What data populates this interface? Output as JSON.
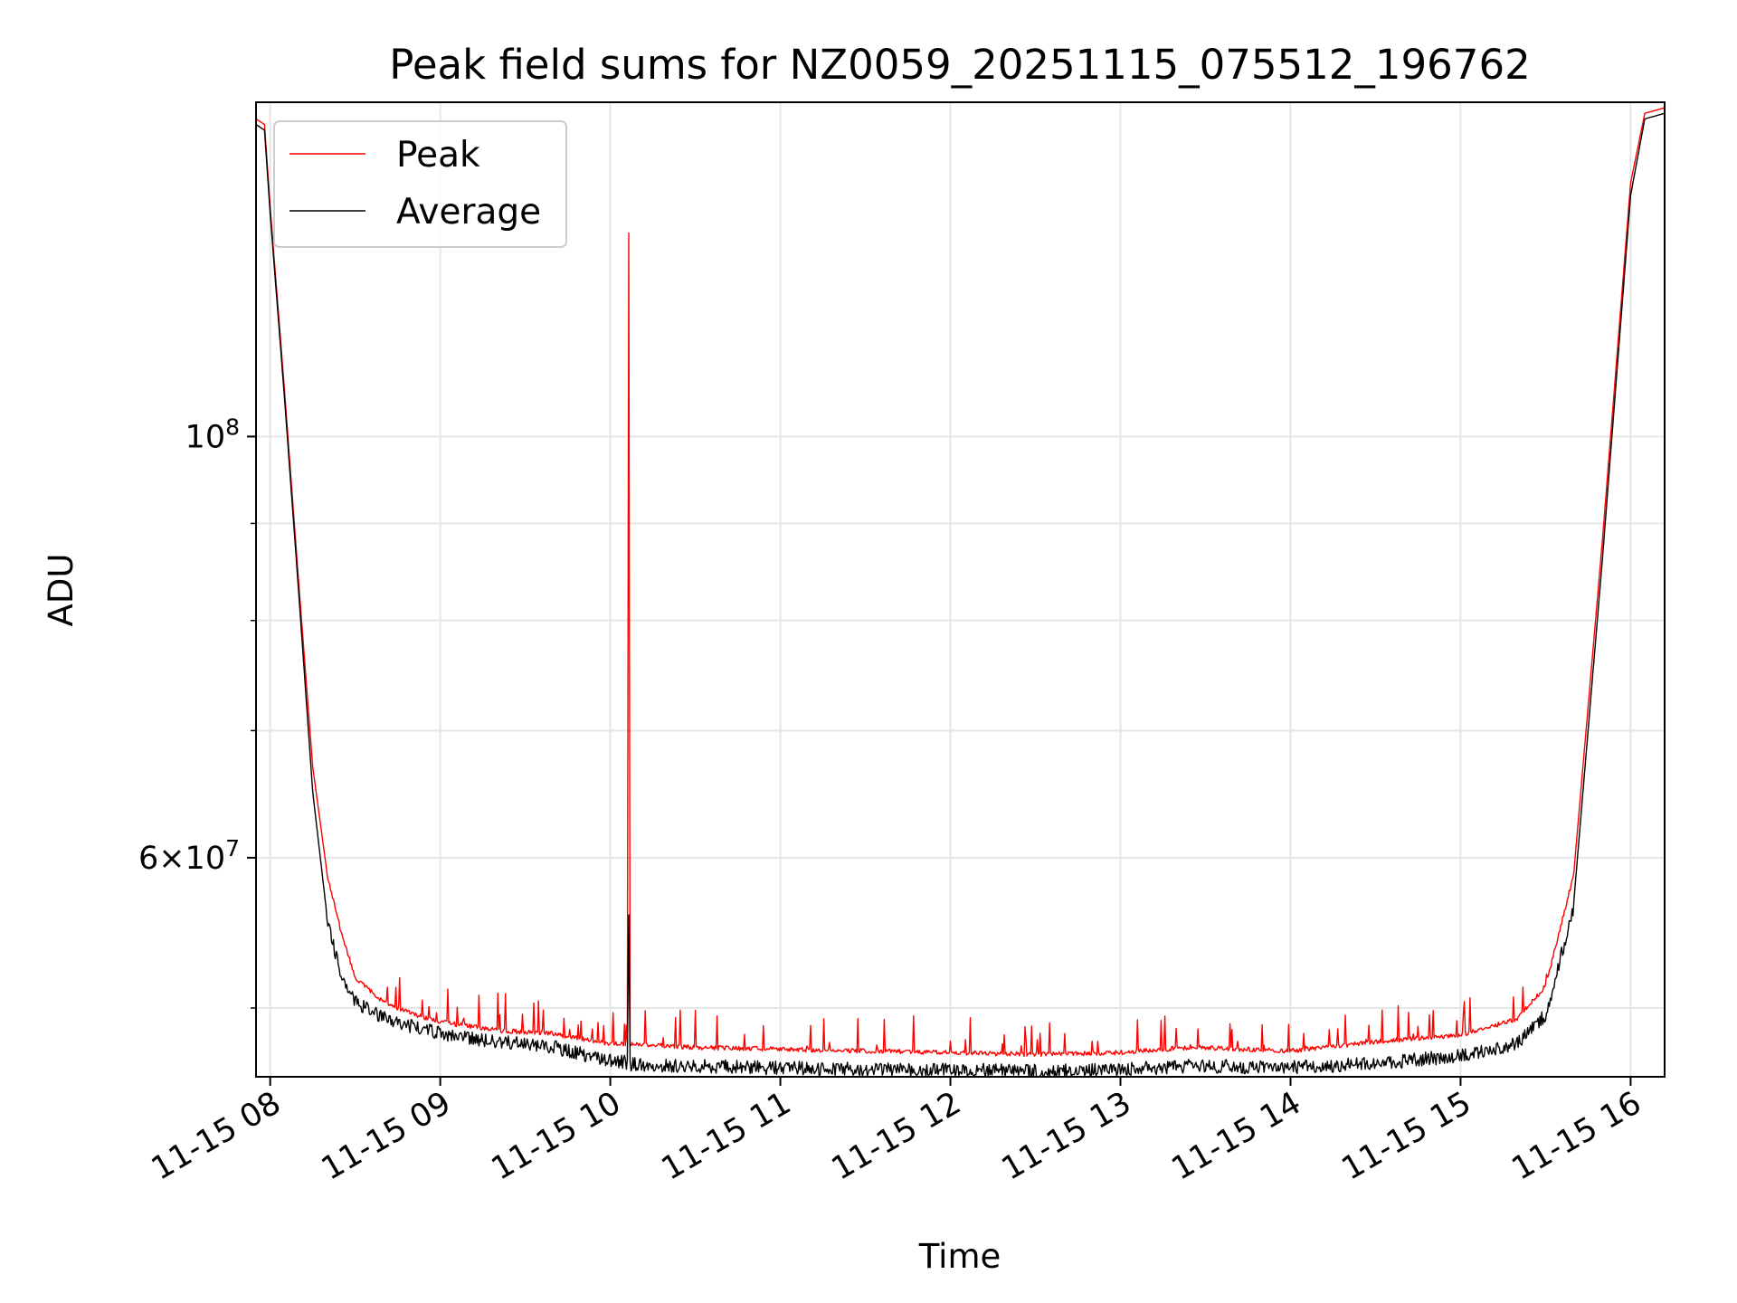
{
  "chart_data": {
    "type": "line",
    "title": "Peak field sums for NZ0059_20251115_075512_196762",
    "xlabel": "Time",
    "ylabel": "ADU",
    "xlim": [
      "2025-11-15 07:55",
      "2025-11-15 16:12"
    ],
    "ylim": [
      46000000,
      150000000
    ],
    "yscale": "log",
    "grid": true,
    "legend_position": "upper-left",
    "x_tick_labels": [
      "11-15 08",
      "11-15 09",
      "11-15 10",
      "11-15 11",
      "11-15 12",
      "11-15 13",
      "11-15 14",
      "11-15 15",
      "11-15 16"
    ],
    "y_major_tick_labels": [
      {
        "value": 100000000,
        "base": "10",
        "exp": "8",
        "mant": ""
      },
      {
        "value": 60000000,
        "base": "10",
        "exp": "7",
        "mant": "6"
      }
    ],
    "x_tick_values": [
      "2025-11-15 08:00",
      "2025-11-15 09:00",
      "2025-11-15 10:00",
      "2025-11-15 11:00",
      "2025-11-15 12:00",
      "2025-11-15 13:00",
      "2025-11-15 14:00",
      "2025-11-15 15:00",
      "2025-11-15 16:00"
    ],
    "y_minor_ticks": [
      50000000,
      70000000,
      80000000,
      90000000
    ],
    "series": [
      {
        "name": "Peak",
        "color": "#ff0000",
        "points": [
          [
            "2025-11-15 07:55",
            147000000
          ],
          [
            "2025-11-15 07:58",
            146000000
          ],
          [
            "2025-11-15 08:00",
            132000000
          ],
          [
            "2025-11-15 08:05",
            106000000
          ],
          [
            "2025-11-15 08:10",
            84000000
          ],
          [
            "2025-11-15 08:15",
            67000000
          ],
          [
            "2025-11-15 08:20",
            59000000
          ],
          [
            "2025-11-15 08:25",
            55000000
          ],
          [
            "2025-11-15 08:30",
            52000000
          ],
          [
            "2025-11-15 08:40",
            50500000
          ],
          [
            "2025-11-15 08:50",
            49800000
          ],
          [
            "2025-11-15 09:00",
            49300000
          ],
          [
            "2025-11-15 09:20",
            48800000
          ],
          [
            "2025-11-15 09:40",
            48600000
          ],
          [
            "2025-11-15 10:00",
            48000000
          ],
          [
            "2025-11-15 10:06",
            48000000
          ],
          [
            "2025-11-15 10:06:30",
            128000000
          ],
          [
            "2025-11-15 10:07",
            48000000
          ],
          [
            "2025-11-15 10:30",
            47800000
          ],
          [
            "2025-11-15 11:00",
            47700000
          ],
          [
            "2025-11-15 11:30",
            47600000
          ],
          [
            "2025-11-15 12:00",
            47500000
          ],
          [
            "2025-11-15 12:30",
            47400000
          ],
          [
            "2025-11-15 13:00",
            47500000
          ],
          [
            "2025-11-15 13:25",
            47800000
          ],
          [
            "2025-11-15 14:00",
            47600000
          ],
          [
            "2025-11-15 14:35",
            48200000
          ],
          [
            "2025-11-15 15:00",
            48500000
          ],
          [
            "2025-11-15 15:20",
            49500000
          ],
          [
            "2025-11-15 15:30",
            51500000
          ],
          [
            "2025-11-15 15:40",
            59000000
          ],
          [
            "2025-11-15 15:50",
            88000000
          ],
          [
            "2025-11-15 16:00",
            136000000
          ],
          [
            "2025-11-15 16:05",
            148000000
          ],
          [
            "2025-11-15 16:12",
            149000000
          ]
        ]
      },
      {
        "name": "Average",
        "color": "#000000",
        "points": [
          [
            "2025-11-15 07:55",
            146000000
          ],
          [
            "2025-11-15 07:58",
            145000000
          ],
          [
            "2025-11-15 08:00",
            131000000
          ],
          [
            "2025-11-15 08:05",
            105000000
          ],
          [
            "2025-11-15 08:10",
            83000000
          ],
          [
            "2025-11-15 08:15",
            65000000
          ],
          [
            "2025-11-15 08:20",
            56000000
          ],
          [
            "2025-11-15 08:25",
            52500000
          ],
          [
            "2025-11-15 08:30",
            50800000
          ],
          [
            "2025-11-15 08:40",
            49800000
          ],
          [
            "2025-11-15 08:50",
            49300000
          ],
          [
            "2025-11-15 09:00",
            48900000
          ],
          [
            "2025-11-15 09:20",
            48400000
          ],
          [
            "2025-11-15 09:40",
            48100000
          ],
          [
            "2025-11-15 10:00",
            47300000
          ],
          [
            "2025-11-15 10:06",
            47200000
          ],
          [
            "2025-11-15 10:06:30",
            56500000
          ],
          [
            "2025-11-15 10:07",
            47100000
          ],
          [
            "2025-11-15 10:30",
            47000000
          ],
          [
            "2025-11-15 11:00",
            46900000
          ],
          [
            "2025-11-15 11:30",
            46800000
          ],
          [
            "2025-11-15 12:00",
            46800000
          ],
          [
            "2025-11-15 12:30",
            46700000
          ],
          [
            "2025-11-15 13:00",
            46800000
          ],
          [
            "2025-11-15 13:25",
            47000000
          ],
          [
            "2025-11-15 14:00",
            46900000
          ],
          [
            "2025-11-15 14:35",
            47200000
          ],
          [
            "2025-11-15 15:00",
            47600000
          ],
          [
            "2025-11-15 15:20",
            48300000
          ],
          [
            "2025-11-15 15:30",
            50000000
          ],
          [
            "2025-11-15 15:40",
            57000000
          ],
          [
            "2025-11-15 15:50",
            86000000
          ],
          [
            "2025-11-15 16:00",
            134000000
          ],
          [
            "2025-11-15 16:05",
            147000000
          ],
          [
            "2025-11-15 16:12",
            148000000
          ]
        ]
      }
    ]
  }
}
